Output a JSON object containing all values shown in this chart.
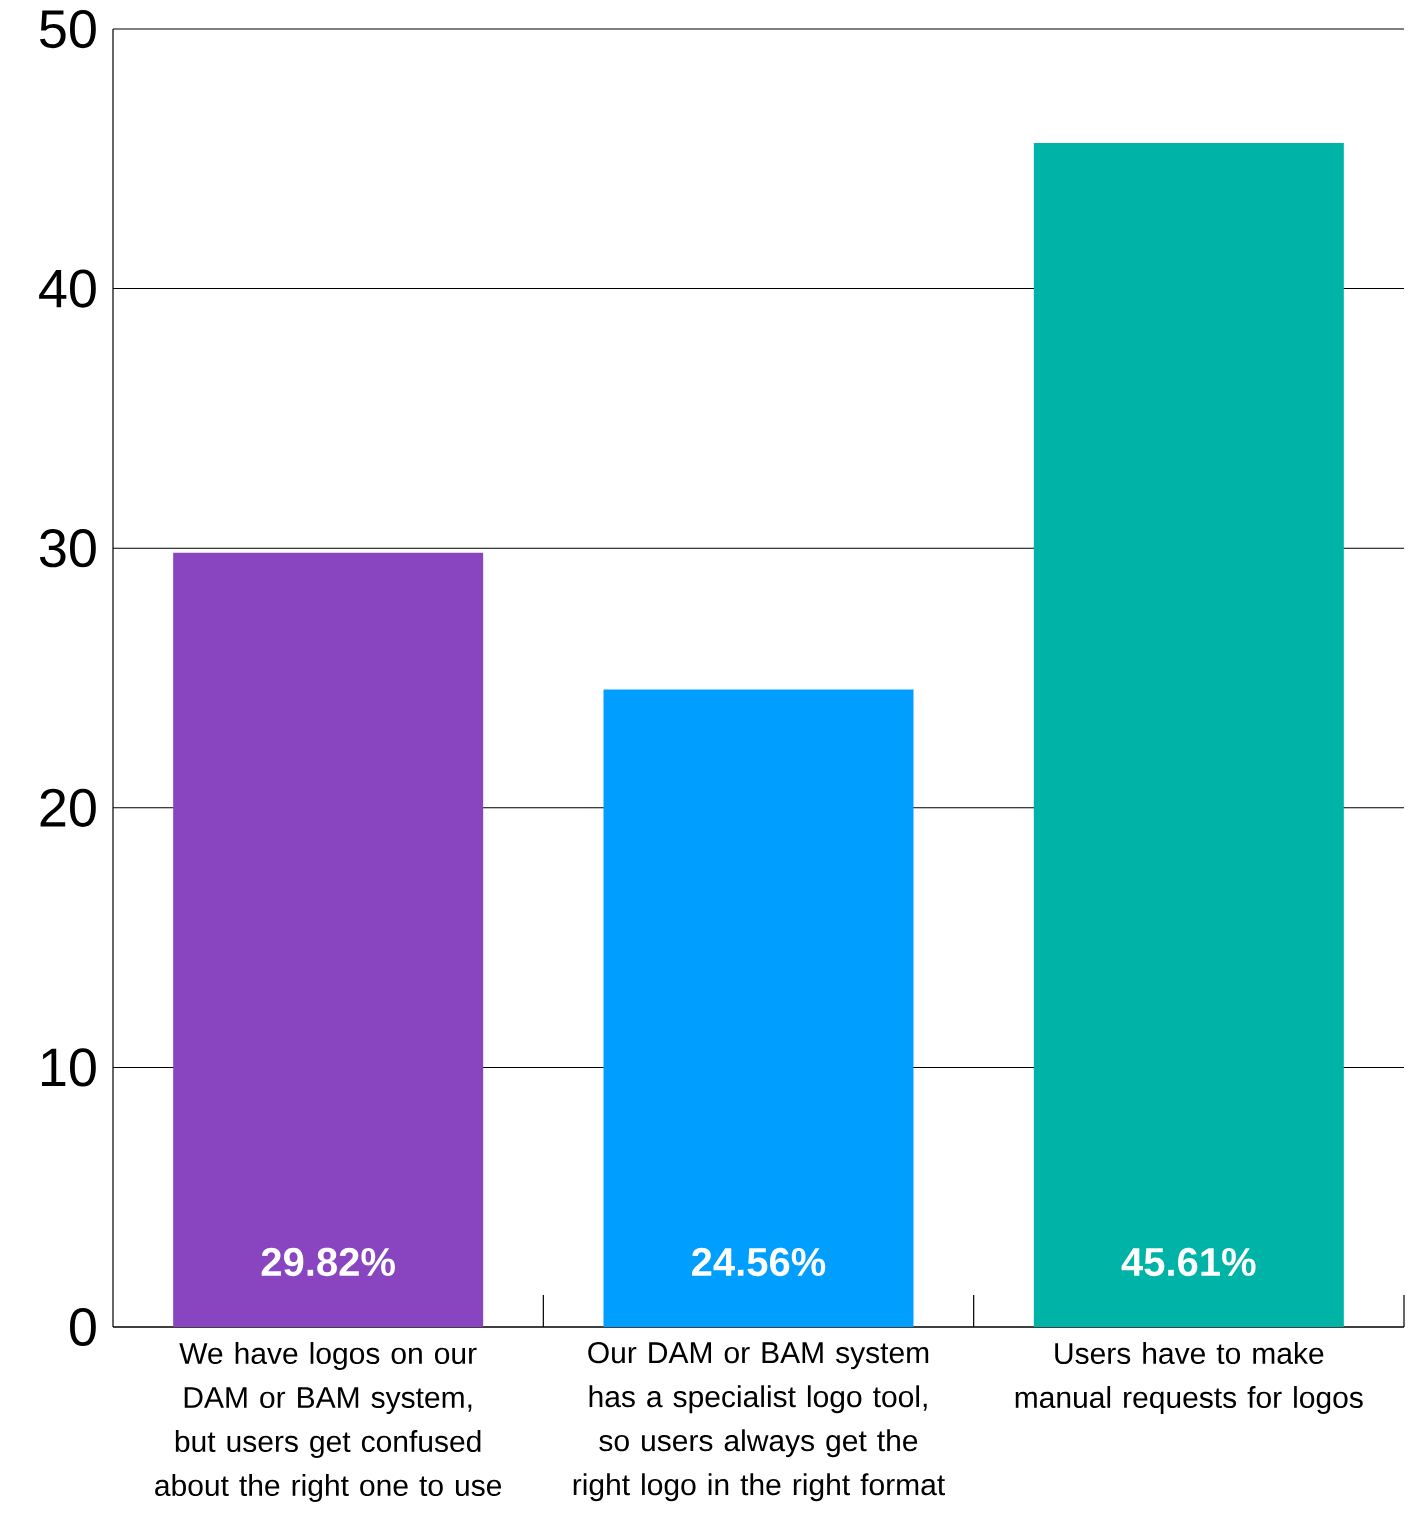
{
  "chart_data": {
    "type": "bar",
    "categories": [
      "We have logos on our DAM or BAM system, but users get confused about the right one to use",
      "Our DAM or BAM system has a specialist logo tool, so users always get the right logo in the right format",
      "Users have to make manual requests for logos"
    ],
    "values": [
      29.82,
      24.56,
      45.61
    ],
    "colors": [
      "#8944bf",
      "#009fff",
      "#00b3a7"
    ],
    "value_labels": [
      "29.82%",
      "24.56%",
      "45.61%"
    ],
    "ylim": [
      0,
      50
    ],
    "yticks": [
      0,
      10,
      20,
      30,
      40,
      50
    ],
    "grid": "y"
  }
}
